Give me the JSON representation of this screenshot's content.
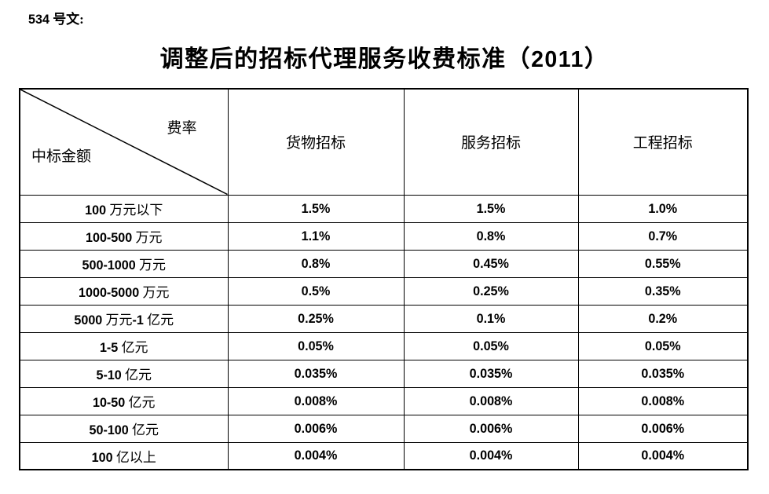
{
  "doc_ref": "534 号文:",
  "title": "调整后的招标代理服务收费标准（2011）",
  "table": {
    "corner": {
      "top_right": "费率",
      "bottom_left": "中标金额"
    },
    "columns": [
      "货物招标",
      "服务招标",
      "工程招标"
    ],
    "rows": [
      {
        "label": "100 万元以下",
        "values": [
          "1.5%",
          "1.5%",
          "1.0%"
        ]
      },
      {
        "label": "100-500 万元",
        "values": [
          "1.1%",
          "0.8%",
          "0.7%"
        ]
      },
      {
        "label": "500-1000 万元",
        "values": [
          "0.8%",
          "0.45%",
          "0.55%"
        ]
      },
      {
        "label": "1000-5000 万元",
        "values": [
          "0.5%",
          "0.25%",
          "0.35%"
        ]
      },
      {
        "label": "5000 万元-1 亿元",
        "values": [
          "0.25%",
          "0.1%",
          "0.2%"
        ]
      },
      {
        "label": "1-5 亿元",
        "values": [
          "0.05%",
          "0.05%",
          "0.05%"
        ]
      },
      {
        "label": "5-10 亿元",
        "values": [
          "0.035%",
          "0.035%",
          "0.035%"
        ]
      },
      {
        "label": "10-50 亿元",
        "values": [
          "0.008%",
          "0.008%",
          "0.008%"
        ]
      },
      {
        "label": "50-100 亿元",
        "values": [
          "0.006%",
          "0.006%",
          "0.006%"
        ]
      },
      {
        "label": "100 亿以上",
        "values": [
          "0.004%",
          "0.004%",
          "0.004%"
        ]
      }
    ],
    "border_color": "#000000"
  }
}
